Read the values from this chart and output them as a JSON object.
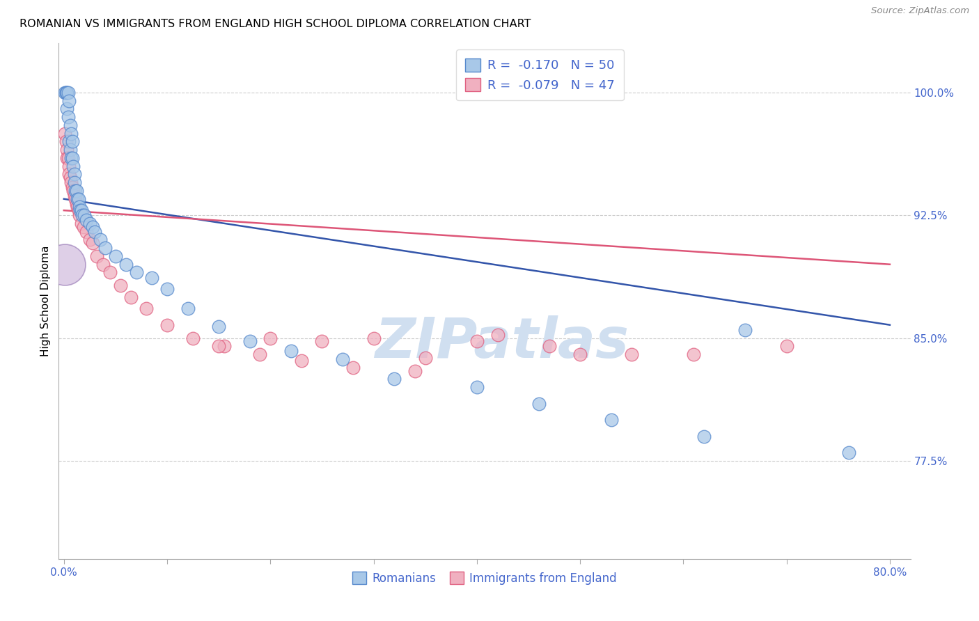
{
  "title": "ROMANIAN VS IMMIGRANTS FROM ENGLAND HIGH SCHOOL DIPLOMA CORRELATION CHART",
  "source": "Source: ZipAtlas.com",
  "ylabel": "High School Diploma",
  "legend_r_blue": "-0.170",
  "legend_n_blue": "50",
  "legend_r_pink": "-0.079",
  "legend_n_pink": "47",
  "legend_label_blue": "Romanians",
  "legend_label_pink": "Immigrants from England",
  "blue_scatter_color": "#a8c8e8",
  "blue_edge_color": "#5588cc",
  "pink_scatter_color": "#f0b0c0",
  "pink_edge_color": "#e06080",
  "blue_line_color": "#3355aa",
  "pink_line_color": "#dd5577",
  "watermark_color": "#d0dff0",
  "axis_color": "#aaaaaa",
  "tick_color": "#4466cc",
  "grid_color": "#cccccc",
  "background_color": "#ffffff",
  "blue_scatter_x": [
    0.001,
    0.002,
    0.002,
    0.003,
    0.003,
    0.004,
    0.004,
    0.005,
    0.005,
    0.006,
    0.006,
    0.007,
    0.007,
    0.008,
    0.008,
    0.009,
    0.01,
    0.01,
    0.011,
    0.012,
    0.013,
    0.014,
    0.015,
    0.016,
    0.017,
    0.018,
    0.02,
    0.022,
    0.025,
    0.028,
    0.03,
    0.035,
    0.04,
    0.05,
    0.06,
    0.07,
    0.085,
    0.1,
    0.12,
    0.15,
    0.18,
    0.22,
    0.27,
    0.32,
    0.4,
    0.46,
    0.53,
    0.62,
    0.76,
    0.66
  ],
  "blue_scatter_y": [
    1.0,
    1.0,
    1.0,
    1.0,
    0.99,
    1.0,
    0.985,
    0.995,
    0.97,
    0.98,
    0.965,
    0.975,
    0.96,
    0.97,
    0.96,
    0.955,
    0.95,
    0.945,
    0.94,
    0.94,
    0.935,
    0.935,
    0.93,
    0.928,
    0.928,
    0.925,
    0.925,
    0.922,
    0.92,
    0.918,
    0.915,
    0.91,
    0.905,
    0.9,
    0.895,
    0.89,
    0.887,
    0.88,
    0.868,
    0.857,
    0.848,
    0.842,
    0.837,
    0.825,
    0.82,
    0.81,
    0.8,
    0.79,
    0.78,
    0.855
  ],
  "blue_scatter_size": [
    100,
    100,
    100,
    100,
    100,
    100,
    100,
    100,
    100,
    100,
    100,
    100,
    100,
    100,
    100,
    100,
    100,
    100,
    100,
    100,
    100,
    100,
    100,
    100,
    100,
    100,
    100,
    100,
    100,
    100,
    100,
    100,
    100,
    100,
    100,
    100,
    100,
    100,
    100,
    100,
    100,
    100,
    100,
    100,
    100,
    100,
    100,
    100,
    100,
    100
  ],
  "pink_scatter_x": [
    0.001,
    0.002,
    0.003,
    0.003,
    0.004,
    0.005,
    0.005,
    0.006,
    0.007,
    0.008,
    0.009,
    0.01,
    0.011,
    0.012,
    0.013,
    0.014,
    0.015,
    0.017,
    0.019,
    0.022,
    0.025,
    0.028,
    0.032,
    0.038,
    0.045,
    0.055,
    0.065,
    0.08,
    0.1,
    0.125,
    0.155,
    0.19,
    0.23,
    0.28,
    0.34,
    0.4,
    0.47,
    0.55,
    0.2,
    0.3,
    0.42,
    0.15,
    0.25,
    0.35,
    0.5,
    0.61,
    0.7
  ],
  "pink_scatter_y": [
    0.975,
    0.97,
    0.965,
    0.96,
    0.96,
    0.955,
    0.95,
    0.948,
    0.945,
    0.942,
    0.94,
    0.937,
    0.935,
    0.932,
    0.93,
    0.928,
    0.925,
    0.92,
    0.918,
    0.915,
    0.91,
    0.908,
    0.9,
    0.895,
    0.89,
    0.882,
    0.875,
    0.868,
    0.858,
    0.85,
    0.845,
    0.84,
    0.836,
    0.832,
    0.83,
    0.848,
    0.845,
    0.84,
    0.85,
    0.85,
    0.852,
    0.845,
    0.848,
    0.838,
    0.84,
    0.84,
    0.845
  ],
  "pink_scatter_size": [
    100,
    100,
    100,
    100,
    100,
    100,
    100,
    100,
    100,
    100,
    100,
    100,
    100,
    100,
    100,
    100,
    100,
    100,
    100,
    100,
    100,
    100,
    100,
    100,
    100,
    100,
    100,
    100,
    100,
    100,
    100,
    100,
    100,
    100,
    100,
    100,
    100,
    100,
    100,
    100,
    100,
    100,
    100,
    100,
    100,
    100,
    100
  ],
  "blue_line_x": [
    0.0,
    0.8
  ],
  "blue_line_y": [
    0.935,
    0.858
  ],
  "pink_line_x": [
    0.0,
    0.8
  ],
  "pink_line_y": [
    0.928,
    0.895
  ],
  "xlim": [
    -0.005,
    0.82
  ],
  "ylim": [
    0.715,
    1.03
  ],
  "yticks": [
    0.775,
    0.85,
    0.925,
    1.0
  ],
  "ytick_labels": [
    "77.5%",
    "85.0%",
    "92.5%",
    "100.0%"
  ],
  "xtick_positions": [
    0.0,
    0.1,
    0.2,
    0.3,
    0.4,
    0.5,
    0.6,
    0.7,
    0.8
  ],
  "xtick_labels": [
    "0.0%",
    "",
    "",
    "",
    "",
    "",
    "",
    "",
    "80.0%"
  ]
}
